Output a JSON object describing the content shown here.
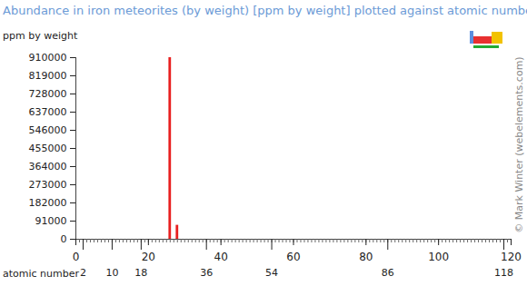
{
  "chart_data": {
    "type": "bar",
    "title": "Abundance in iron meteorites (by weight) [ppm by weight] plotted against atomic number",
    "ylabel": "ppm by weight",
    "xlabel": "atomic number",
    "annotations": [
      "© Mark Winter (webelements.com)"
    ],
    "x": [
      26,
      28
    ],
    "values": [
      910000,
      70000
    ],
    "color": "#e82020",
    "xlim": [
      0,
      120
    ],
    "xticks": [
      0,
      20,
      40,
      60,
      80,
      100,
      120
    ],
    "xticks2": [
      2,
      10,
      18,
      36,
      54,
      86,
      118
    ],
    "ylim": [
      0,
      910000
    ],
    "yticks": [
      0,
      91000,
      182000,
      273000,
      364000,
      455000,
      546000,
      637000,
      728000,
      819000,
      910000
    ],
    "grid": false
  }
}
